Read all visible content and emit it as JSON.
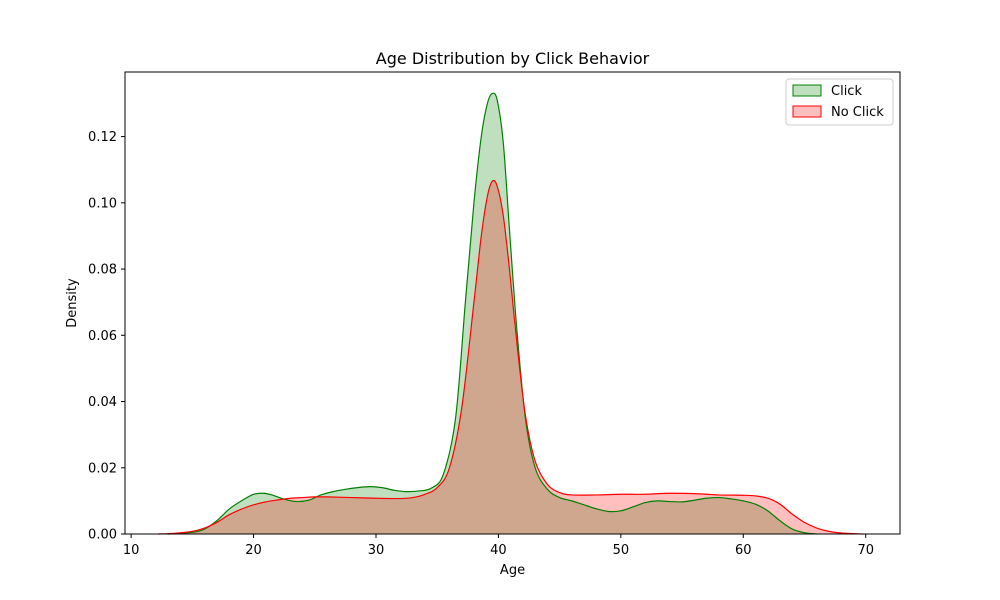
{
  "chart_data": {
    "type": "area",
    "title": "Age Distribution by Click Behavior",
    "xlabel": "Age",
    "ylabel": "Density",
    "xlim": [
      9.5,
      72.8
    ],
    "ylim": [
      0,
      0.1395
    ],
    "xticks": [
      10,
      20,
      30,
      40,
      50,
      60,
      70
    ],
    "yticks": [
      0.0,
      0.02,
      0.04,
      0.06,
      0.08,
      0.1,
      0.12
    ],
    "ytick_labels": [
      "0.00",
      "0.02",
      "0.04",
      "0.06",
      "0.08",
      "0.10",
      "0.12"
    ],
    "grid": false,
    "legend_position": "top-right",
    "series": [
      {
        "name": "Click",
        "color": "#008000",
        "fill": "#008000",
        "fill_opacity": 0.25,
        "x": [
          13,
          15,
          16,
          17,
          18,
          19,
          20,
          20.8,
          21.5,
          22.5,
          23.5,
          24.5,
          25.5,
          26.5,
          27.5,
          28.5,
          29.5,
          30.5,
          31.5,
          32.5,
          33.5,
          34.5,
          35.5,
          36.5,
          37.3,
          38,
          38.6,
          39.1,
          39.5,
          39.9,
          40.4,
          40.9,
          41.5,
          42.2,
          43,
          44,
          45,
          46,
          47,
          48,
          49,
          50,
          51,
          52,
          53,
          54,
          55,
          56,
          57,
          58,
          59,
          60,
          61,
          62,
          63,
          64,
          65,
          66
        ],
        "values": [
          0,
          0.0005,
          0.0015,
          0.004,
          0.0075,
          0.01,
          0.012,
          0.0123,
          0.0118,
          0.0105,
          0.0098,
          0.0102,
          0.0118,
          0.0128,
          0.0135,
          0.014,
          0.0143,
          0.014,
          0.0132,
          0.0128,
          0.013,
          0.0138,
          0.018,
          0.035,
          0.07,
          0.1,
          0.12,
          0.13,
          0.133,
          0.131,
          0.118,
          0.092,
          0.062,
          0.035,
          0.02,
          0.0135,
          0.011,
          0.01,
          0.0088,
          0.0076,
          0.0068,
          0.007,
          0.0082,
          0.0095,
          0.01,
          0.0098,
          0.0097,
          0.0102,
          0.0108,
          0.011,
          0.0106,
          0.01,
          0.009,
          0.007,
          0.004,
          0.0015,
          0.0004,
          0
        ]
      },
      {
        "name": "No Click",
        "color": "#ff0000",
        "fill": "#ff0000",
        "fill_opacity": 0.25,
        "x": [
          12.2,
          13.5,
          15,
          16,
          17,
          18,
          19,
          20,
          21,
          22,
          23,
          24,
          25,
          26,
          28,
          30,
          32,
          33,
          34,
          35,
          36,
          37,
          38,
          38.6,
          39.1,
          39.5,
          39.9,
          40.4,
          40.9,
          41.5,
          42.2,
          43,
          44,
          45,
          46,
          48,
          50,
          52,
          54,
          56,
          58,
          60,
          61,
          62,
          63,
          64,
          65,
          66,
          67,
          68,
          69.8
        ],
        "values": [
          0,
          0.0002,
          0.0008,
          0.0018,
          0.0035,
          0.0058,
          0.0075,
          0.0088,
          0.0097,
          0.0103,
          0.0108,
          0.011,
          0.0112,
          0.0112,
          0.011,
          0.0108,
          0.0107,
          0.011,
          0.012,
          0.014,
          0.02,
          0.038,
          0.07,
          0.09,
          0.102,
          0.1065,
          0.105,
          0.096,
          0.08,
          0.058,
          0.036,
          0.022,
          0.015,
          0.0125,
          0.0118,
          0.0118,
          0.012,
          0.012,
          0.0123,
          0.0122,
          0.0118,
          0.0117,
          0.0115,
          0.0108,
          0.009,
          0.006,
          0.0035,
          0.0018,
          0.0008,
          0.0003,
          0
        ]
      }
    ]
  }
}
